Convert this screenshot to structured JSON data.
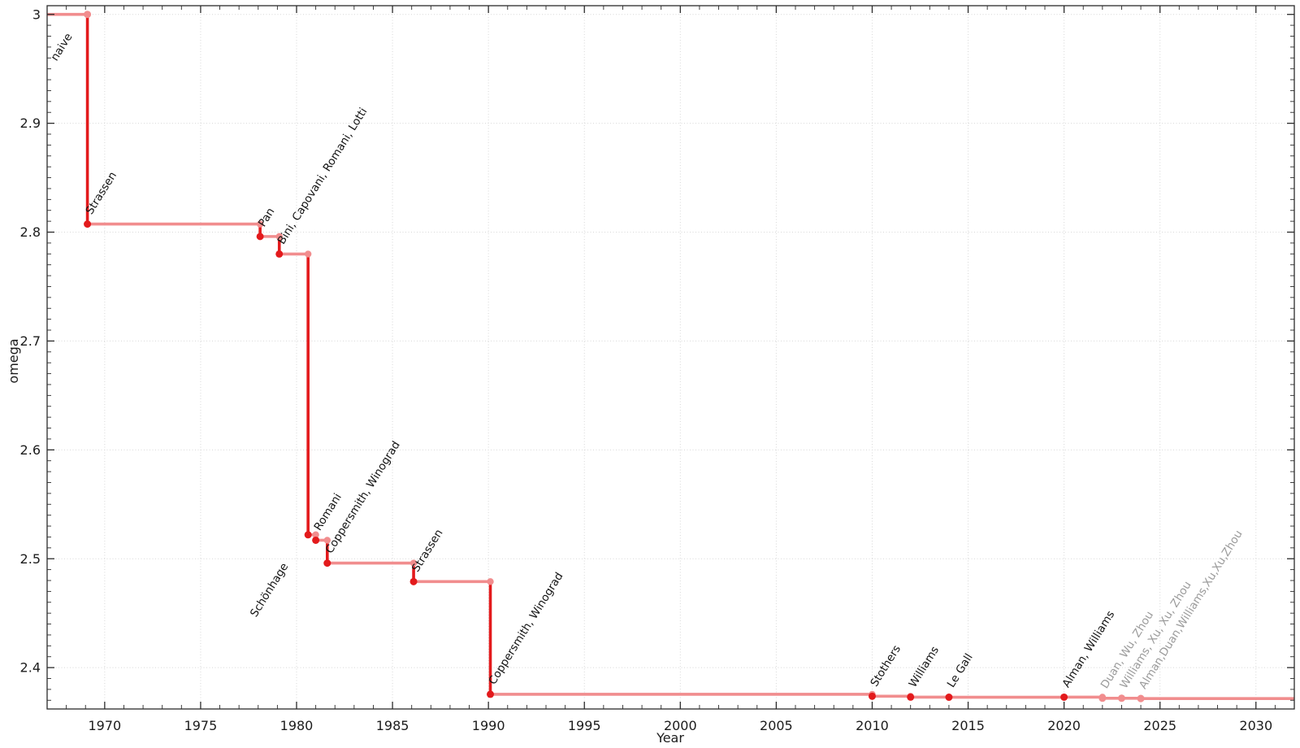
{
  "chart_data": {
    "type": "line",
    "subtype": "step-post",
    "title": "",
    "xlabel": "Year",
    "ylabel": "omega",
    "xlim": [
      1967,
      2032
    ],
    "ylim": [
      2.362,
      3.008
    ],
    "xticks": [
      1970,
      1975,
      1980,
      1985,
      1990,
      1995,
      2000,
      2005,
      2010,
      2015,
      2020,
      2025,
      2030
    ],
    "yticks": [
      2.4,
      2.5,
      2.6,
      2.7,
      2.8,
      2.9,
      3
    ],
    "ytick_labels": [
      "2.4",
      "2.5",
      "2.6",
      "2.7",
      "2.8",
      "2.9",
      "3"
    ],
    "grid": "dotted",
    "legend": "none",
    "colors": {
      "line_dark": "#e31a1c",
      "line_pale": "#f18d8e",
      "label_normal": "#141414",
      "label_muted": "#9b9b9b",
      "grid": "#d7d7d7",
      "spine": "#2b2b2b",
      "tick_text": "#1c1c1c"
    },
    "points": [
      {
        "label": "naive",
        "year": 1969.1,
        "omega": 3.0,
        "dot": "pale",
        "label_style": "normal",
        "label_offset": [
          -38,
          58
        ]
      },
      {
        "label": "Strassen",
        "year": 1969.1,
        "omega": 2.8074,
        "dot": "dark",
        "label_style": "normal"
      },
      {
        "label": "Pan",
        "year": 1978.1,
        "omega": 2.796,
        "dot": "dark",
        "label_style": "normal"
      },
      {
        "label": "Bini, Capovani, Romani, Lotti",
        "year": 1979.1,
        "omega": 2.7799,
        "dot": "dark",
        "label_style": "normal"
      },
      {
        "label": "Schönhage",
        "year": 1980.6,
        "omega": 2.522,
        "dot": "dark",
        "label_style": "normal",
        "label_offset": [
          -64,
          102
        ]
      },
      {
        "label": "Romani",
        "year": 1981.0,
        "omega": 2.517,
        "dot": "dark",
        "label_style": "normal"
      },
      {
        "label": "Coppersmith, Winograd",
        "year": 1981.6,
        "omega": 2.496,
        "dot": "dark",
        "label_style": "normal"
      },
      {
        "label": "Strassen",
        "year": 1986.1,
        "omega": 2.479,
        "dot": "dark",
        "label_style": "normal"
      },
      {
        "label": "Coppersmith, Winograd",
        "year": 1990.1,
        "omega": 2.3755,
        "dot": "dark",
        "label_style": "normal"
      },
      {
        "label": "Stothers",
        "year": 2010.0,
        "omega": 2.3737,
        "dot": "dark",
        "label_style": "normal"
      },
      {
        "label": "Williams",
        "year": 2012.0,
        "omega": 2.3729,
        "dot": "dark",
        "label_style": "normal"
      },
      {
        "label": "Le Gall",
        "year": 2014.0,
        "omega": 2.3728,
        "dot": "dark",
        "label_style": "normal"
      },
      {
        "label": "Alman, Williams",
        "year": 2020.0,
        "omega": 2.37286,
        "dot": "dark",
        "label_style": "normal"
      },
      {
        "label": "Duan, Wu, Zhou",
        "year": 2022.0,
        "omega": 2.37188,
        "dot": "pale",
        "label_style": "muted"
      },
      {
        "label": "Williams, Xu, Xu, Zhou",
        "year": 2023.0,
        "omega": 2.371866,
        "dot": "pale",
        "label_style": "muted"
      },
      {
        "label": "Alman,Duan,Williams,Xu,Xu,Zhou",
        "year": 2024.0,
        "omega": 2.371552,
        "dot": "pale",
        "label_style": "muted"
      }
    ]
  }
}
